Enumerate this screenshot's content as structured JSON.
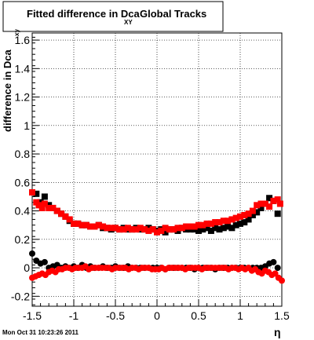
{
  "chart_data": {
    "type": "scatter",
    "title": {
      "prefix": "Fitted difference in Dca",
      "subscript": "XY",
      "suffix": "Global Tracks"
    },
    "xlabel": "η",
    "ylabel": {
      "text": "difference in Dca",
      "subscript": "xy"
    },
    "xlim": [
      -1.5,
      1.5
    ],
    "ylim": [
      -0.27,
      1.65
    ],
    "x_ticks": [
      -1.5,
      -1,
      -0.5,
      0,
      0.5,
      1,
      1.5
    ],
    "x_tick_labels": [
      "-1.5",
      "-1",
      "-0.5",
      "0",
      "0.5",
      "1",
      "1.5"
    ],
    "y_ticks": [
      -0.2,
      0,
      0.2,
      0.4,
      0.6,
      0.8,
      1,
      1.2,
      1.4,
      1.6
    ],
    "y_tick_labels": [
      "-0.2",
      "0",
      "0.2",
      "0.4",
      "0.6",
      "0.8",
      "1",
      "1.2",
      "1.4",
      "1.6"
    ],
    "grid": true,
    "series": [
      {
        "marker": "square",
        "color": "#000000",
        "x": [
          -1.45,
          -1.4,
          -1.35,
          -1.3,
          -1.25,
          -1.2,
          -1.15,
          -1.1,
          -1.05,
          -1.0,
          -0.95,
          -0.9,
          -0.85,
          -0.8,
          -0.75,
          -0.7,
          -0.65,
          -0.6,
          -0.55,
          -0.5,
          -0.45,
          -0.4,
          -0.35,
          -0.3,
          -0.25,
          -0.2,
          -0.15,
          -0.1,
          -0.05,
          0.0,
          0.05,
          0.1,
          0.15,
          0.2,
          0.25,
          0.3,
          0.35,
          0.4,
          0.45,
          0.5,
          0.55,
          0.6,
          0.65,
          0.7,
          0.75,
          0.8,
          0.85,
          0.9,
          0.95,
          1.0,
          1.05,
          1.1,
          1.15,
          1.2,
          1.25,
          1.3,
          1.35,
          1.4,
          1.45
        ],
        "y": [
          0.52,
          0.46,
          0.5,
          0.44,
          0.42,
          0.4,
          0.38,
          0.36,
          0.33,
          0.31,
          0.31,
          0.3,
          0.3,
          0.29,
          0.29,
          0.3,
          0.28,
          0.28,
          0.27,
          0.28,
          0.27,
          0.28,
          0.27,
          0.27,
          0.28,
          0.27,
          0.27,
          0.28,
          0.27,
          0.26,
          0.27,
          0.25,
          0.27,
          0.27,
          0.26,
          0.28,
          0.27,
          0.27,
          0.27,
          0.26,
          0.27,
          0.28,
          0.26,
          0.28,
          0.27,
          0.28,
          0.29,
          0.28,
          0.3,
          0.31,
          0.32,
          0.34,
          0.37,
          0.39,
          0.42,
          0.45,
          0.49,
          0.47,
          0.38
        ]
      },
      {
        "marker": "circle",
        "color": "#000000",
        "x": [
          -1.5,
          -1.45,
          -1.4,
          -1.35,
          -1.3,
          -1.25,
          -1.2,
          -1.15,
          -1.1,
          -1.05,
          -1.0,
          -0.95,
          -0.9,
          -0.85,
          -0.8,
          -0.75,
          -0.7,
          -0.65,
          -0.6,
          -0.55,
          -0.5,
          -0.45,
          -0.4,
          -0.35,
          -0.3,
          -0.25,
          -0.2,
          -0.15,
          -0.1,
          -0.05,
          0.0,
          0.05,
          0.1,
          0.15,
          0.2,
          0.25,
          0.3,
          0.35,
          0.4,
          0.45,
          0.5,
          0.55,
          0.6,
          0.65,
          0.7,
          0.75,
          0.8,
          0.85,
          0.9,
          0.95,
          1.0,
          1.05,
          1.1,
          1.15,
          1.2,
          1.25,
          1.3,
          1.35,
          1.4,
          1.45
        ],
        "y": [
          0.1,
          0.05,
          0.03,
          0.04,
          0.0,
          0.01,
          0.02,
          0.0,
          0.01,
          0.0,
          0.01,
          0.0,
          0.02,
          0.0,
          0.01,
          0.0,
          0.0,
          0.01,
          0.0,
          0.0,
          0.01,
          0.0,
          0.0,
          0.01,
          0.0,
          0.0,
          0.0,
          0.0,
          0.0,
          0.0,
          0.0,
          0.0,
          -0.01,
          0.0,
          0.0,
          0.0,
          0.0,
          0.0,
          0.0,
          -0.01,
          0.0,
          0.0,
          0.0,
          0.0,
          -0.01,
          0.0,
          0.0,
          0.0,
          0.0,
          0.0,
          0.0,
          0.0,
          0.0,
          0.0,
          0.0,
          0.0,
          0.01,
          0.03,
          0.04,
          0.0
        ]
      },
      {
        "marker": "square",
        "color": "#ff0000",
        "x": [
          -1.5,
          -1.45,
          -1.42,
          -1.38,
          -1.35,
          -1.3,
          -1.25,
          -1.2,
          -1.15,
          -1.1,
          -1.05,
          -1.0,
          -0.95,
          -0.9,
          -0.85,
          -0.8,
          -0.75,
          -0.7,
          -0.65,
          -0.6,
          -0.55,
          -0.5,
          -0.45,
          -0.4,
          -0.35,
          -0.3,
          -0.25,
          -0.2,
          -0.15,
          -0.1,
          -0.05,
          0.0,
          0.05,
          0.1,
          0.15,
          0.2,
          0.25,
          0.3,
          0.35,
          0.4,
          0.45,
          0.5,
          0.55,
          0.6,
          0.65,
          0.7,
          0.75,
          0.8,
          0.85,
          0.9,
          0.95,
          1.0,
          1.05,
          1.1,
          1.15,
          1.2,
          1.25,
          1.3,
          1.35,
          1.4,
          1.45,
          1.48
        ],
        "y": [
          0.53,
          0.46,
          0.44,
          0.42,
          0.45,
          0.42,
          0.42,
          0.4,
          0.38,
          0.36,
          0.34,
          0.31,
          0.31,
          0.3,
          0.3,
          0.29,
          0.29,
          0.3,
          0.29,
          0.28,
          0.28,
          0.28,
          0.27,
          0.27,
          0.28,
          0.27,
          0.27,
          0.28,
          0.27,
          0.26,
          0.27,
          0.25,
          0.26,
          0.28,
          0.27,
          0.27,
          0.28,
          0.28,
          0.29,
          0.29,
          0.29,
          0.3,
          0.3,
          0.31,
          0.31,
          0.32,
          0.32,
          0.33,
          0.33,
          0.34,
          0.35,
          0.36,
          0.37,
          0.38,
          0.4,
          0.44,
          0.45,
          0.45,
          0.43,
          0.47,
          0.48,
          0.45
        ]
      },
      {
        "marker": "circle",
        "color": "#ff0000",
        "x": [
          -1.5,
          -1.46,
          -1.42,
          -1.38,
          -1.34,
          -1.3,
          -1.26,
          -1.22,
          -1.18,
          -1.14,
          -1.1,
          -1.06,
          -1.02,
          -0.98,
          -0.94,
          -0.9,
          -0.86,
          -0.82,
          -0.78,
          -0.74,
          -0.7,
          -0.66,
          -0.62,
          -0.58,
          -0.54,
          -0.5,
          -0.46,
          -0.42,
          -0.38,
          -0.34,
          -0.3,
          -0.26,
          -0.22,
          -0.18,
          -0.14,
          -0.1,
          -0.06,
          -0.02,
          0.02,
          0.06,
          0.1,
          0.14,
          0.18,
          0.22,
          0.26,
          0.3,
          0.34,
          0.38,
          0.42,
          0.46,
          0.5,
          0.54,
          0.58,
          0.62,
          0.66,
          0.7,
          0.74,
          0.78,
          0.82,
          0.86,
          0.9,
          0.94,
          0.98,
          1.02,
          1.06,
          1.1,
          1.14,
          1.18,
          1.22,
          1.26,
          1.3,
          1.34,
          1.38,
          1.42,
          1.46,
          1.5
        ],
        "y": [
          -0.07,
          -0.06,
          -0.05,
          -0.04,
          -0.05,
          -0.03,
          -0.02,
          -0.03,
          -0.01,
          -0.01,
          0.0,
          0.0,
          -0.01,
          0.0,
          0.0,
          0.0,
          0.01,
          -0.01,
          0.0,
          0.0,
          0.0,
          0.0,
          0.0,
          0.0,
          -0.01,
          0.0,
          0.0,
          0.0,
          0.0,
          -0.01,
          0.0,
          0.0,
          -0.01,
          0.0,
          0.0,
          0.0,
          -0.01,
          -0.01,
          -0.01,
          0.0,
          -0.01,
          0.0,
          0.0,
          0.0,
          0.0,
          0.0,
          -0.01,
          0.0,
          0.0,
          0.0,
          0.0,
          -0.01,
          0.0,
          0.0,
          0.0,
          0.0,
          0.0,
          0.0,
          0.0,
          -0.01,
          0.0,
          0.0,
          -0.01,
          0.0,
          -0.01,
          0.0,
          -0.02,
          -0.01,
          -0.03,
          -0.04,
          -0.02,
          -0.03,
          -0.05,
          -0.04,
          -0.07,
          -0.09
        ]
      }
    ]
  },
  "footer": {
    "timestamp": "Mon Oct 31 10:23:26 2011"
  }
}
